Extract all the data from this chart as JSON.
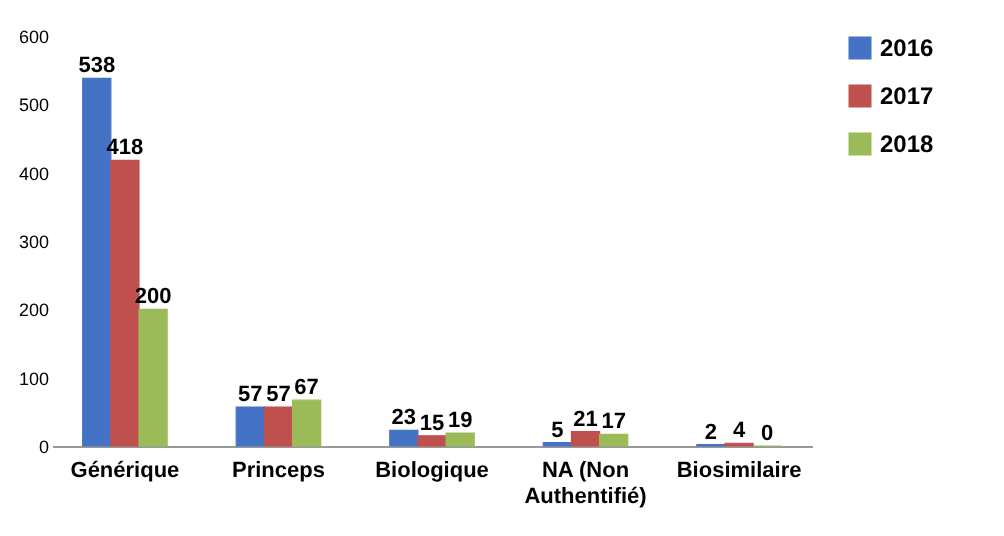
{
  "chart_data": {
    "type": "bar",
    "categories": [
      "Générique",
      "Princeps",
      "Biologique",
      "NA (Non Authentifié)",
      "Biosimilaire"
    ],
    "series": [
      {
        "name": "2016",
        "color": "#4472c4",
        "values": [
          538,
          57,
          23,
          5,
          2
        ]
      },
      {
        "name": "2017",
        "color": "#c0504d",
        "values": [
          418,
          57,
          15,
          21,
          4
        ]
      },
      {
        "name": "2018",
        "color": "#9bbb59",
        "values": [
          200,
          67,
          19,
          17,
          0
        ]
      }
    ],
    "ylim": [
      0,
      600
    ],
    "yticks": [
      0,
      100,
      200,
      300,
      400,
      500,
      600
    ],
    "grid": false,
    "legend": "right",
    "data_labels": true
  }
}
